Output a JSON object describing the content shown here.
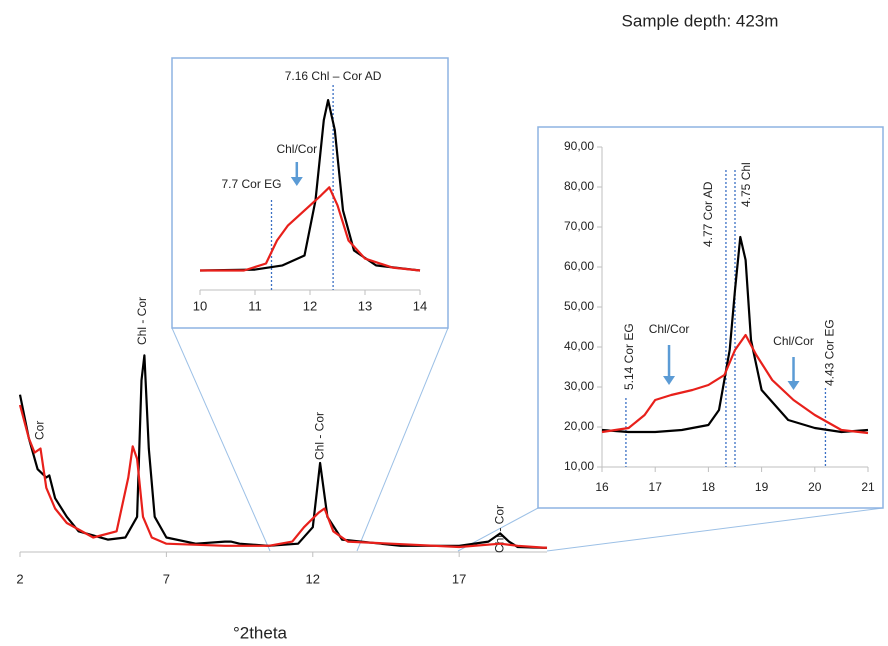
{
  "chart_data": [
    {
      "type": "line",
      "title": "Sample depth: 423m",
      "xlabel": "°2theta",
      "xlim": [
        2,
        20
      ],
      "xticks": [
        2,
        7,
        12,
        17
      ],
      "ylim": [
        0,
        100
      ],
      "series": [
        {
          "color": "#000000",
          "x": [
            2.0,
            2.3,
            2.6,
            2.9,
            3.0,
            3.2,
            3.6,
            4.0,
            5.0,
            5.6,
            6.0,
            6.15,
            6.25,
            6.4,
            6.6,
            7.0,
            8.0,
            9.0,
            9.2,
            9.5,
            10.5,
            11.5,
            12.0,
            12.25,
            12.5,
            13.0,
            15.0,
            17.0,
            18.0,
            18.4,
            18.7,
            19.0,
            20.0
          ],
          "values": [
            76,
            55,
            40,
            36,
            37,
            26,
            17,
            10,
            6,
            7,
            17,
            83,
            95,
            50,
            17,
            7,
            4,
            5,
            5,
            4,
            3,
            4,
            12,
            43,
            17,
            6,
            3,
            3,
            5,
            9,
            5,
            2.4,
            2
          ]
        },
        {
          "color": "#e8201b",
          "x": [
            2.0,
            2.3,
            2.5,
            2.7,
            2.9,
            3.2,
            3.6,
            4.5,
            5.3,
            5.7,
            5.85,
            6.0,
            6.2,
            6.5,
            7.0,
            9.0,
            10.5,
            11.3,
            11.7,
            12.2,
            12.4,
            12.7,
            13.2,
            17.0,
            18.4,
            19.0,
            20.0
          ],
          "values": [
            71,
            55,
            48,
            50,
            31,
            21,
            14,
            7,
            10,
            36,
            51,
            45,
            17,
            7,
            4,
            3,
            3,
            5,
            12,
            19,
            21,
            10,
            5,
            2.4,
            4,
            3,
            2
          ]
        }
      ],
      "peak_labels": [
        {
          "x": 2.7,
          "label": "Cor"
        },
        {
          "x": 6.2,
          "label": "Chl - Cor"
        },
        {
          "x": 12.25,
          "label": "Chl - Cor"
        },
        {
          "x": 18.4,
          "label": "Chl - Cor"
        }
      ]
    },
    {
      "type": "line",
      "xlim": [
        10,
        14
      ],
      "xticks": [
        10,
        11,
        12,
        13,
        14
      ],
      "ylim": [
        -8,
        100
      ],
      "series": [
        {
          "color": "#000000",
          "x": [
            10,
            11,
            11.5,
            11.9,
            12.1,
            12.25,
            12.33,
            12.45,
            12.6,
            12.8,
            13.2,
            14
          ],
          "values": [
            2.8,
            3.3,
            5.6,
            11.1,
            41.7,
            86.1,
            97.2,
            80.6,
            36.1,
            13.9,
            5.6,
            2.8
          ]
        },
        {
          "color": "#e8201b",
          "x": [
            10,
            10.8,
            11.2,
            11.4,
            11.6,
            11.9,
            12.2,
            12.35,
            12.5,
            12.7,
            13.0,
            13.5,
            14
          ],
          "values": [
            2.8,
            2.8,
            6.7,
            19.4,
            27.8,
            36.1,
            44.4,
            48.9,
            38.9,
            19.4,
            9.4,
            4.4,
            2.8
          ]
        }
      ],
      "markers": [
        {
          "x": 12.42,
          "label": "7.16 Chl – Cor AD",
          "color": "#000000"
        },
        {
          "x": 11.3,
          "label": "7.7 Cor EG",
          "color": "#e8201b"
        }
      ],
      "arrows": [
        {
          "x": 11.76,
          "label": "Chl/Cor",
          "color": "#e8201b"
        }
      ]
    },
    {
      "type": "line",
      "xlim": [
        16,
        21
      ],
      "xticks": [
        16,
        17,
        18,
        19,
        20,
        21
      ],
      "ylim": [
        10,
        90
      ],
      "yticks": [
        {
          "value": 10,
          "label": "10,00"
        },
        {
          "value": 20,
          "label": "20,00"
        },
        {
          "value": 30,
          "label": "30,00"
        },
        {
          "value": 40,
          "label": "40,00"
        },
        {
          "value": 50,
          "label": "50,00"
        },
        {
          "value": 60,
          "label": "60,00"
        },
        {
          "value": 70,
          "label": "70,00"
        },
        {
          "value": 80,
          "label": "80,00"
        },
        {
          "value": 90,
          "label": "90,00"
        }
      ],
      "series": [
        {
          "color": "#000000",
          "x": [
            16,
            16.5,
            17,
            17.5,
            18,
            18.2,
            18.4,
            18.5,
            18.6,
            18.7,
            18.8,
            19,
            19.5,
            20,
            20.5,
            21
          ],
          "values": [
            19.25,
            18.75,
            18.75,
            19.25,
            20.5,
            24.25,
            39.25,
            54.25,
            67.5,
            61.75,
            41.75,
            29.25,
            21.75,
            19.75,
            18.75,
            19.25
          ]
        },
        {
          "color": "#e8201b",
          "x": [
            16,
            16.5,
            16.8,
            17.0,
            17.3,
            17.7,
            18.0,
            18.3,
            18.5,
            18.7,
            18.9,
            19.2,
            19.6,
            20.0,
            20.5,
            21
          ],
          "values": [
            18.75,
            19.75,
            23,
            26.75,
            28,
            29.25,
            30.5,
            33,
            39.25,
            43,
            38,
            31.75,
            26.75,
            23,
            19.25,
            18.5
          ]
        }
      ],
      "markers": [
        {
          "x": 16.45,
          "label": "5.14 Cor EG",
          "color": "#e8201b"
        },
        {
          "x": 18.33,
          "label": "4.77 Cor AD",
          "color": "#000000"
        },
        {
          "x": 18.5,
          "label": "4.75 Chl",
          "color": "#000000"
        },
        {
          "x": 20.2,
          "label": "4.43 Cor EG",
          "color": "#e8201b"
        }
      ],
      "arrows": [
        {
          "x": 17.26,
          "label": "Chl/Cor",
          "color": "#e8201b"
        },
        {
          "x": 19.6,
          "label": "Chl/Cor",
          "color": "#e8201b"
        }
      ]
    }
  ]
}
